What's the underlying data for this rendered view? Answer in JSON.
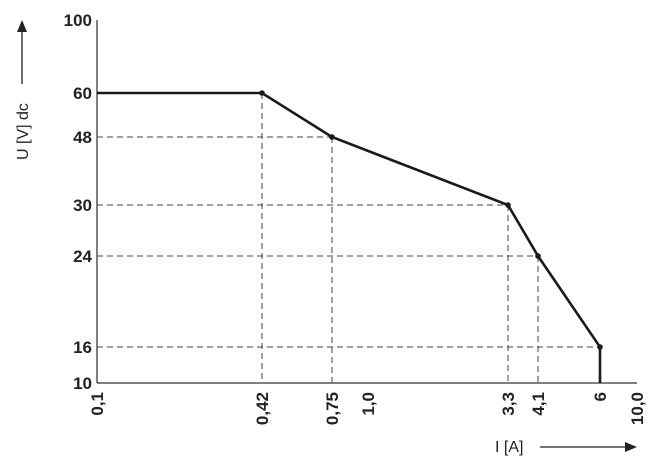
{
  "chart_data": {
    "type": "line",
    "xlabel": "I [A]",
    "ylabel": "U [V] dc",
    "x_ticks": [
      "0,1",
      "0,42",
      "0,75",
      "1,0",
      "3,3",
      "4,1",
      "6",
      "10,0"
    ],
    "y_ticks": [
      "10",
      "16",
      "24",
      "30",
      "48",
      "60",
      "100"
    ],
    "xlim": [
      0.1,
      10
    ],
    "ylim": [
      10,
      100
    ],
    "x_scale": "log",
    "y_scale": "nonlinear",
    "grid": "dashed guide lines from each point to the axes",
    "series": [
      {
        "x": [
          0.1,
          0.42,
          0.75,
          3.3,
          4.1,
          6,
          6
        ],
        "y": [
          60,
          60,
          48,
          30,
          24,
          16,
          10
        ]
      }
    ],
    "colors": {
      "line": "#1a1a1a",
      "guides": "#444444"
    }
  }
}
